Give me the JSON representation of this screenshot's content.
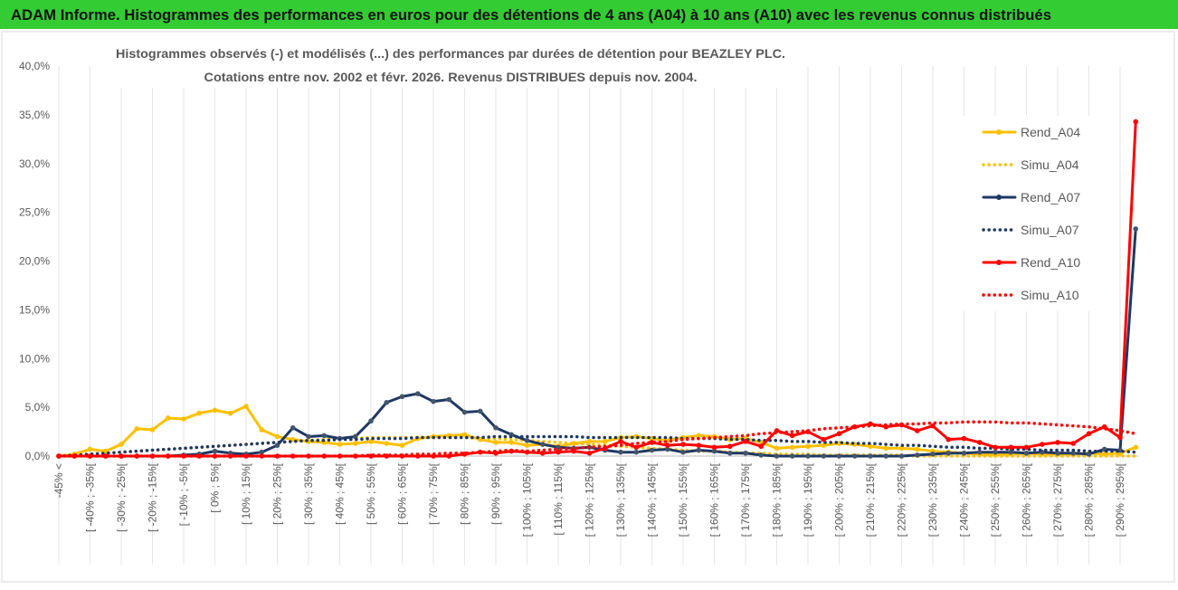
{
  "header": {
    "title": "ADAM Informe. Histogrammes des performances en euros pour des détentions de 4 ans (A04) à 10 ans (A10) avec les revenus connus distribués"
  },
  "chart_data": {
    "type": "line",
    "title": "Histogrammes observés (-) et modélisés (...) des performances par durées de détention pour BEAZLEY PLC.",
    "subtitle": "Cotations entre nov. 2002 et févr. 2026. Revenus DISTRIBUES depuis nov. 2004.",
    "categories": [
      "-45% <",
      null,
      "[ -40% ; -35%[",
      null,
      "[ -30% ; -25%[",
      null,
      "[ -20% ; -15%[",
      null,
      "[ -10% ; -5%[",
      null,
      "[ 0% ; 5%[",
      null,
      "[ 10% ; 15%[",
      null,
      "[ 20% ; 25%[",
      null,
      "[ 30% ; 35%[",
      null,
      "[ 40% ; 45%[",
      null,
      "[ 50% ; 55%[",
      null,
      "[ 60% ; 65%[",
      null,
      "[ 70% ; 75%[",
      null,
      "[ 80% ; 85%[",
      null,
      "[ 90% ; 95%[",
      null,
      "[ 100% ; 105%[",
      null,
      "[ 110% ; 115%[",
      null,
      "[ 120% ; 125%[",
      null,
      "[ 130% ; 135%[",
      null,
      "[ 140% ; 145%[",
      null,
      "[ 150% ; 155%[",
      null,
      "[ 160% ; 165%[",
      null,
      "[ 170% ; 175%[",
      null,
      "[ 180% ; 185%[",
      null,
      "[ 190% ; 195%[",
      null,
      "[ 200% ; 205%[",
      null,
      "[ 210% ; 215%[",
      null,
      "[ 220% ; 225%[",
      null,
      "[ 230% ; 235%[",
      null,
      "[ 240% ; 245%[",
      null,
      "[ 250% ; 255%[",
      null,
      "[ 260% ; 265%[",
      null,
      "[ 270% ; 275%[",
      null,
      "[ 280% ; 285%[",
      null,
      "[ 290% ; 295%[",
      null
    ],
    "series": [
      {
        "name": "Rend_A04",
        "color": "#ffc000",
        "line_style": "solid",
        "values": [
          0,
          0.2,
          0.7,
          0.5,
          1.2,
          2.8,
          2.7,
          3.9,
          3.8,
          4.4,
          4.7,
          4.4,
          5.1,
          2.7,
          2.0,
          1.7,
          1.5,
          1.4,
          1.2,
          1.3,
          1.5,
          1.3,
          1.1,
          1.8,
          2.0,
          2.1,
          2.2,
          1.7,
          1.4,
          1.4,
          1.1,
          1.2,
          1.0,
          1.3,
          1.5,
          1.5,
          1.9,
          2.0,
          1.8,
          1.6,
          1.9,
          2.1,
          2.0,
          1.7,
          1.8,
          1.4,
          0.8,
          0.9,
          1.0,
          1.1,
          1.3,
          1.2,
          1.0,
          0.8,
          0.8,
          0.7,
          0.5,
          0.4,
          0.3,
          0.2,
          0.1,
          0.2,
          0.3,
          0.2,
          0.2,
          0.2,
          0.3,
          0.2,
          0.3,
          0.9
        ]
      },
      {
        "name": "Simu_A04",
        "color": "#ffc000",
        "line_style": "dotted",
        "values": [
          0,
          0.1,
          0.2,
          0.3,
          0.4,
          0.5,
          0.6,
          0.7,
          0.8,
          0.9,
          1.0,
          1.1,
          1.2,
          1.3,
          1.4,
          1.5,
          1.6,
          1.7,
          1.8,
          1.8,
          1.9,
          1.9,
          1.9,
          1.9,
          1.9,
          1.9,
          1.9,
          1.8,
          1.8,
          1.7,
          1.6,
          1.5,
          1.4,
          1.3,
          1.2,
          1.1,
          1.0,
          0.9,
          0.8,
          0.7,
          0.6,
          0.5,
          0.5,
          0.4,
          0.3,
          0.3,
          0.2,
          0.2,
          0.2,
          0.1,
          0.1,
          0.1,
          0.1,
          0.1,
          0.1,
          0,
          0,
          0,
          0,
          0,
          0,
          0,
          0,
          0,
          0,
          0,
          0,
          0,
          0,
          0
        ]
      },
      {
        "name": "Rend_A07",
        "color": "#1f3864",
        "line_style": "solid",
        "values": [
          0,
          0,
          0,
          0,
          0,
          0,
          0,
          0,
          0.1,
          0.2,
          0.5,
          0.3,
          0.2,
          0.4,
          1.1,
          2.9,
          2.0,
          2.1,
          1.8,
          2.0,
          3.6,
          5.5,
          6.1,
          6.4,
          5.6,
          5.8,
          4.5,
          4.6,
          2.9,
          2.2,
          1.6,
          1.2,
          0.9,
          0.8,
          0.9,
          0.6,
          0.4,
          0.4,
          0.6,
          0.7,
          0.4,
          0.6,
          0.5,
          0.3,
          0.3,
          0.1,
          0,
          0,
          0,
          0,
          0,
          0,
          0,
          0,
          0,
          0.1,
          0.2,
          0.3,
          0.3,
          0.4,
          0.4,
          0.4,
          0.3,
          0.4,
          0.3,
          0.3,
          0.2,
          0.7,
          0.6,
          23.3
        ]
      },
      {
        "name": "Simu_A07",
        "color": "#1f3864",
        "line_style": "dotted",
        "values": [
          0,
          0.1,
          0.2,
          0.3,
          0.4,
          0.5,
          0.6,
          0.7,
          0.8,
          0.9,
          1.0,
          1.1,
          1.2,
          1.3,
          1.4,
          1.5,
          1.6,
          1.6,
          1.7,
          1.7,
          1.8,
          1.8,
          1.8,
          1.9,
          1.9,
          1.9,
          1.9,
          1.9,
          2.0,
          2.0,
          2.0,
          2.0,
          2.0,
          2.0,
          1.9,
          1.9,
          1.9,
          1.9,
          1.9,
          1.9,
          1.8,
          1.8,
          1.8,
          1.7,
          1.7,
          1.6,
          1.6,
          1.5,
          1.5,
          1.4,
          1.4,
          1.3,
          1.3,
          1.2,
          1.1,
          1.1,
          1.0,
          0.9,
          0.9,
          0.8,
          0.8,
          0.7,
          0.7,
          0.6,
          0.6,
          0.6,
          0.5,
          0.5,
          0.5,
          0.4
        ]
      },
      {
        "name": "Rend_A10",
        "color": "#ff0000",
        "line_style": "solid",
        "values": [
          0,
          0,
          0,
          0,
          0,
          0,
          0,
          0,
          0,
          0,
          0,
          0,
          0,
          0,
          0,
          0,
          0,
          0,
          0,
          0,
          0,
          0,
          0,
          0,
          0,
          0,
          0.2,
          0.4,
          0.3,
          0.5,
          0.4,
          0.3,
          0.4,
          0.5,
          0.3,
          0.8,
          1.5,
          0.9,
          1.4,
          1.1,
          1.2,
          1.1,
          0.9,
          1.0,
          1.5,
          1.0,
          2.6,
          2.1,
          2.5,
          1.7,
          2.3,
          3.0,
          3.3,
          3.0,
          3.2,
          2.6,
          3.1,
          1.7,
          1.8,
          1.4,
          0.9,
          0.9,
          0.9,
          1.2,
          1.4,
          1.3,
          2.3,
          3.0,
          1.9,
          34.3
        ]
      },
      {
        "name": "Simu_A10",
        "color": "#ff0000",
        "line_style": "dotted",
        "values": [
          0,
          0,
          0,
          0,
          0,
          0,
          0,
          0,
          0,
          0,
          0,
          0,
          0,
          0,
          0,
          0,
          0,
          0,
          0,
          0,
          0.1,
          0.1,
          0.1,
          0.2,
          0.2,
          0.3,
          0.3,
          0.4,
          0.5,
          0.6,
          0.5,
          0.6,
          0.7,
          0.8,
          0.9,
          1.0,
          1.1,
          1.3,
          1.4,
          1.5,
          1.7,
          1.8,
          1.9,
          2.0,
          2.1,
          2.3,
          2.4,
          2.5,
          2.6,
          2.8,
          2.9,
          3.0,
          3.1,
          3.2,
          3.3,
          3.3,
          3.4,
          3.4,
          3.5,
          3.5,
          3.5,
          3.4,
          3.4,
          3.3,
          3.2,
          3.1,
          3.0,
          2.8,
          2.6,
          2.3
        ]
      }
    ],
    "ylim": [
      0,
      40
    ],
    "yticks": [
      {
        "value": 0,
        "label": "0,0%"
      },
      {
        "value": 5,
        "label": "5,0%"
      },
      {
        "value": 10,
        "label": "10,0%"
      },
      {
        "value": 15,
        "label": "15,0%"
      },
      {
        "value": 20,
        "label": "20,0%"
      },
      {
        "value": 25,
        "label": "25,0%"
      },
      {
        "value": 30,
        "label": "30,0%"
      },
      {
        "value": 35,
        "label": "35,0%"
      },
      {
        "value": 40,
        "label": "40,0%"
      }
    ],
    "grid": "x",
    "legend": "right"
  }
}
